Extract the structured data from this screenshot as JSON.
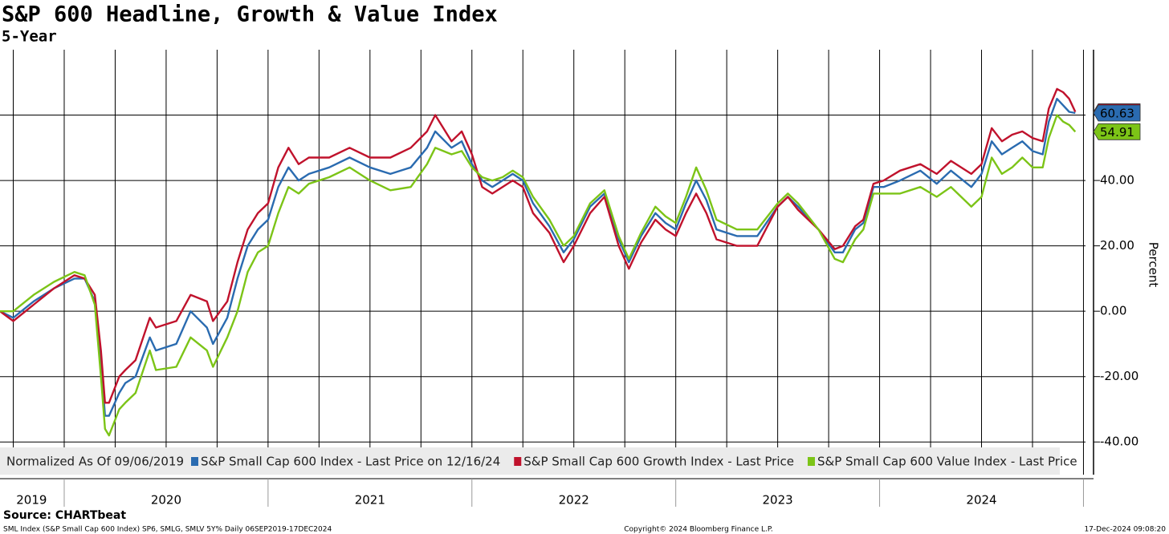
{
  "chart_data": {
    "type": "line",
    "title": "S&P 600 Headline, Growth & Value Index",
    "subtitle": "5-Year",
    "y_label": "Percent",
    "legend_note": "Normalized As Of 09/06/2019",
    "source": "Source: CHARTbeat",
    "footer_left": "SML Index (S&P Small Cap 600 Index) SP6, SMLG, SMLV 5Y%  Daily 06SEP2019-17DEC2024",
    "footer_center": "Copyright© 2024 Bloomberg Finance L.P.",
    "footer_right": "17-Dec-2024 09:08:20",
    "xlim": [
      2019.685,
      2025.01
    ],
    "xticks": [
      {
        "value": 2019.84,
        "label": "2019"
      },
      {
        "value": 2020.5,
        "label": "2020"
      },
      {
        "value": 2021.5,
        "label": "2021"
      },
      {
        "value": 2022.5,
        "label": "2022"
      },
      {
        "value": 2023.5,
        "label": "2023"
      },
      {
        "value": 2024.5,
        "label": "2024"
      }
    ],
    "x_separators": [
      2020,
      2021,
      2022,
      2023,
      2024,
      2025
    ],
    "xgrid": [
      2019.75,
      2020,
      2020.25,
      2020.5,
      2020.75,
      2021,
      2021.25,
      2021.5,
      2021.75,
      2022,
      2022.25,
      2022.5,
      2022.75,
      2023,
      2023.25,
      2023.5,
      2023.75,
      2024,
      2024.25,
      2024.5,
      2024.75,
      2025
    ],
    "ylim": [
      -50,
      80
    ],
    "yticks": [
      {
        "value": -40,
        "label": "-40.00"
      },
      {
        "value": -20,
        "label": "-20.00"
      },
      {
        "value": 0,
        "label": "0.00"
      },
      {
        "value": 20,
        "label": "20.00"
      },
      {
        "value": 40,
        "label": "40.00"
      },
      {
        "value": 60,
        "label": null
      }
    ],
    "grid": true,
    "x": [
      2019.685,
      2019.75,
      2019.85,
      2019.95,
      2020.05,
      2020.1,
      2020.15,
      2020.18,
      2020.2,
      2020.22,
      2020.27,
      2020.3,
      2020.35,
      2020.42,
      2020.45,
      2020.55,
      2020.62,
      2020.7,
      2020.73,
      2020.8,
      2020.85,
      2020.9,
      2020.95,
      2021.0,
      2021.05,
      2021.1,
      2021.15,
      2021.2,
      2021.3,
      2021.4,
      2021.5,
      2021.6,
      2021.7,
      2021.78,
      2021.82,
      2021.9,
      2021.95,
      2022.0,
      2022.05,
      2022.1,
      2022.15,
      2022.2,
      2022.25,
      2022.3,
      2022.38,
      2022.45,
      2022.5,
      2022.58,
      2022.65,
      2022.72,
      2022.77,
      2022.83,
      2022.9,
      2022.95,
      2023.0,
      2023.05,
      2023.1,
      2023.15,
      2023.2,
      2023.3,
      2023.4,
      2023.5,
      2023.55,
      2023.6,
      2023.7,
      2023.78,
      2023.82,
      2023.88,
      2023.92,
      2023.97,
      2024.02,
      2024.1,
      2024.2,
      2024.28,
      2024.35,
      2024.45,
      2024.5,
      2024.55,
      2024.6,
      2024.65,
      2024.7,
      2024.75,
      2024.8,
      2024.83,
      2024.87,
      2024.9,
      2024.93,
      2024.96
    ],
    "series": [
      {
        "name": "S&P Small Cap 600 Index - Last Price on 12/16/24",
        "color": "#2a6bb0",
        "end_label": true,
        "values": [
          0,
          -2,
          3,
          7,
          10,
          10,
          3,
          -15,
          -32,
          -32,
          -25,
          -22,
          -20,
          -8,
          -12,
          -10,
          0,
          -5,
          -10,
          -2,
          10,
          20,
          25,
          28,
          38,
          44,
          40,
          42,
          44,
          47,
          44,
          42,
          44,
          50,
          55,
          50,
          52,
          45,
          40,
          38,
          40,
          42,
          40,
          33,
          26,
          18,
          22,
          32,
          36,
          22,
          15,
          23,
          30,
          27,
          25,
          33,
          40,
          34,
          25,
          23,
          23,
          32,
          35,
          32,
          25,
          18,
          18,
          25,
          27,
          38,
          38,
          40,
          43,
          39,
          43,
          38,
          42,
          52,
          48,
          50,
          52,
          49,
          48,
          58,
          65,
          63,
          61,
          60.63
        ]
      },
      {
        "name": "S&P Small Cap 600 Growth Index - Last Price",
        "color": "#c0122c",
        "end_label": false,
        "values": [
          0,
          -3,
          2,
          7,
          11,
          10,
          5,
          -12,
          -28,
          -28,
          -20,
          -18,
          -15,
          -2,
          -5,
          -3,
          5,
          3,
          -3,
          3,
          15,
          25,
          30,
          33,
          44,
          50,
          45,
          47,
          47,
          50,
          47,
          47,
          50,
          55,
          60,
          52,
          55,
          48,
          38,
          36,
          38,
          40,
          38,
          30,
          24,
          15,
          20,
          30,
          35,
          20,
          13,
          21,
          28,
          25,
          23,
          30,
          36,
          30,
          22,
          20,
          20,
          32,
          35,
          31,
          25,
          19,
          20,
          26,
          28,
          39,
          40,
          43,
          45,
          42,
          46,
          42,
          45,
          56,
          52,
          54,
          55,
          53,
          52,
          62,
          68,
          67,
          65,
          61
        ]
      },
      {
        "name": "S&P Small Cap 600 Value Index - Last Price",
        "color": "#7cc417",
        "end_label": true,
        "values": [
          0,
          0,
          5,
          9,
          12,
          11,
          2,
          -20,
          -36,
          -38,
          -30,
          -28,
          -25,
          -12,
          -18,
          -17,
          -8,
          -12,
          -17,
          -8,
          0,
          12,
          18,
          20,
          30,
          38,
          36,
          39,
          41,
          44,
          40,
          37,
          38,
          45,
          50,
          48,
          49,
          44,
          41,
          40,
          41,
          43,
          41,
          35,
          28,
          20,
          23,
          33,
          37,
          23,
          16,
          24,
          32,
          29,
          27,
          35,
          44,
          37,
          28,
          25,
          25,
          33,
          36,
          33,
          25,
          16,
          15,
          22,
          25,
          36,
          36,
          36,
          38,
          35,
          38,
          32,
          35,
          47,
          42,
          44,
          47,
          44,
          44,
          53,
          60,
          58,
          57,
          54.91
        ]
      }
    ]
  }
}
